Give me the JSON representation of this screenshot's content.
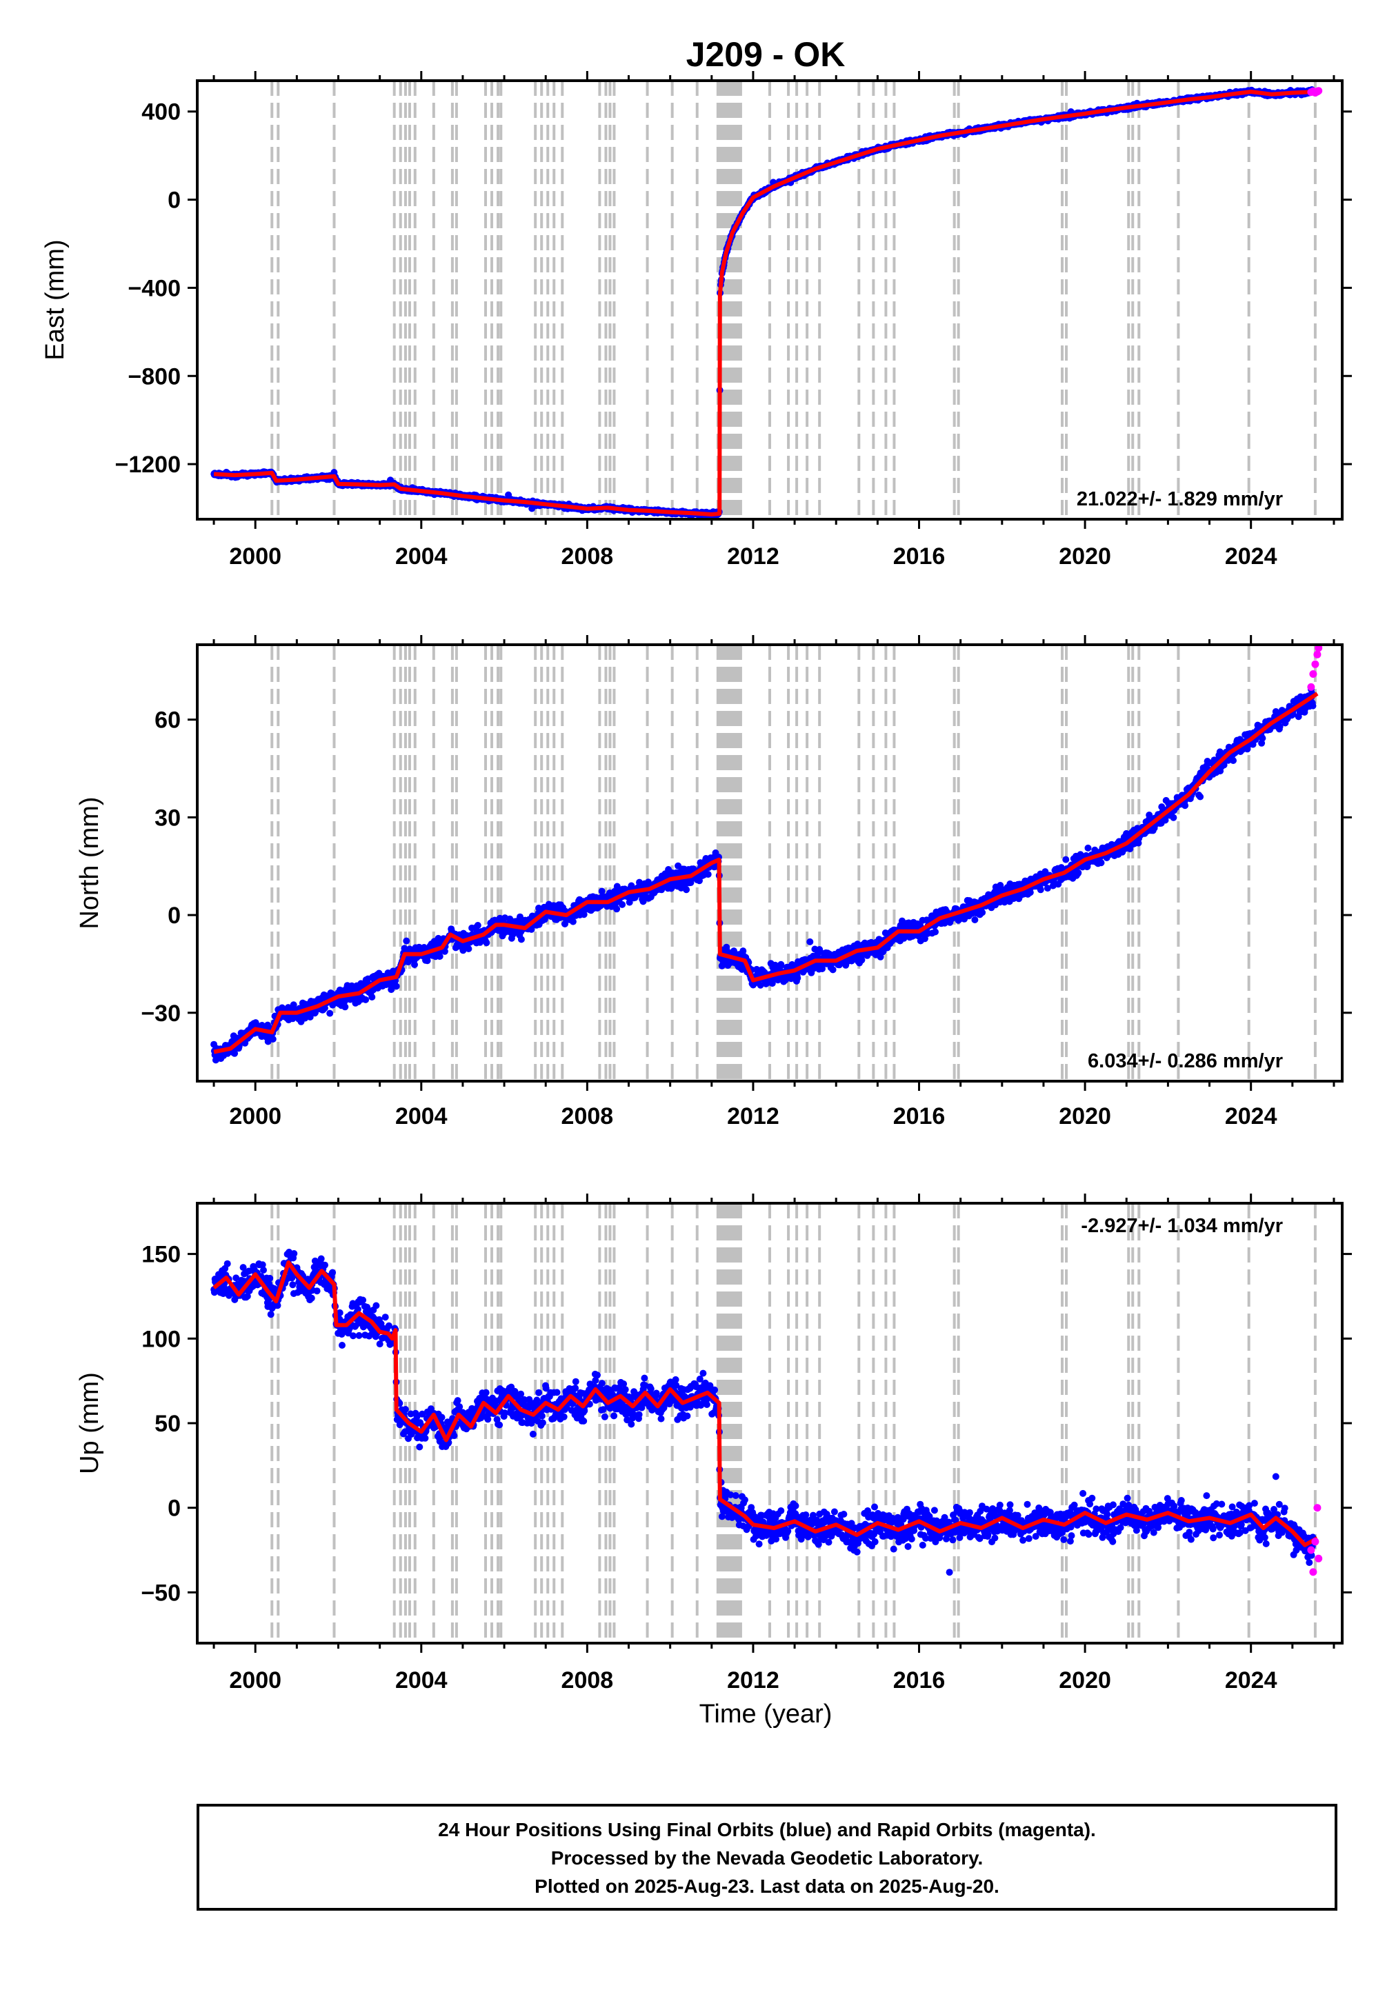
{
  "title": "J209 - OK",
  "xlabel": "Time (year)",
  "footer": {
    "line1": "24 Hour Positions Using Final Orbits (blue) and Rapid Orbits (magenta).",
    "line2": "Processed by the Nevada Geodetic Laboratory.",
    "line3": "Plotted on 2025-Aug-23. Last data on 2025-Aug-20."
  },
  "colors": {
    "final_orbits": "#0000ff",
    "rapid_orbits": "#ff00ff",
    "model": "#ff0000",
    "event_lines": "#c0c0c0",
    "frame": "#000000"
  },
  "event_lines_years": [
    2000.4,
    2000.55,
    2001.9,
    2003.35,
    2003.5,
    2003.62,
    2003.72,
    2003.85,
    2004.3,
    2004.75,
    2004.85,
    2005.55,
    2005.7,
    2005.85,
    2005.92,
    2006.75,
    2006.9,
    2007.05,
    2007.2,
    2007.4,
    2008.3,
    2008.45,
    2008.55,
    2008.65,
    2009.45,
    2010.05,
    2010.65,
    2011.15,
    2011.2,
    2011.25,
    2011.3,
    2011.35,
    2011.4,
    2011.45,
    2011.5,
    2011.55,
    2011.6,
    2011.65,
    2011.7,
    2012.4,
    2012.85,
    2013.05,
    2013.3,
    2013.6,
    2014.55,
    2014.9,
    2015.2,
    2015.4,
    2016.85,
    2016.95,
    2019.45,
    2019.55,
    2021.05,
    2021.15,
    2021.3,
    2022.25,
    2023.95,
    2025.55
  ],
  "chart_data": [
    {
      "type": "scatter",
      "name": "east",
      "ylabel": "East (mm)",
      "rate_text": "21.022+/- 1.829 mm/yr",
      "xlim": [
        1998.6,
        2026.2
      ],
      "ylim": [
        -1450,
        540
      ],
      "xticks": [
        2000,
        2004,
        2008,
        2012,
        2016,
        2020,
        2024
      ],
      "yticks": [
        400,
        0,
        -400,
        -800,
        -1200
      ],
      "ytick_labels": [
        "400",
        "0",
        "−400",
        "−800",
        "−1200"
      ],
      "series": [
        {
          "role": "model",
          "x": [
            1999.0,
            1999.5,
            2000.0,
            2000.4,
            2000.5,
            2001.0,
            2001.5,
            2001.9,
            2002.0,
            2002.5,
            2003.0,
            2003.35,
            2003.5,
            2004.0,
            2004.5,
            2005.0,
            2005.5,
            2006.0,
            2006.5,
            2007.0,
            2007.5,
            2008.0,
            2008.5,
            2009.0,
            2009.5,
            2010.0,
            2010.5,
            2011.0,
            2011.19,
            2011.2,
            2011.25,
            2011.35,
            2011.5,
            2011.75,
            2012.0,
            2012.5,
            2013.0,
            2013.5,
            2014.0,
            2014.5,
            2015.0,
            2015.5,
            2016.0,
            2016.5,
            2017.0,
            2017.5,
            2018.0,
            2018.5,
            2019.0,
            2019.5,
            2020.0,
            2020.5,
            2021.0,
            2021.5,
            2022.0,
            2022.5,
            2023.0,
            2023.5,
            2024.0,
            2024.5,
            2025.0,
            2025.6
          ],
          "y": [
            -1245,
            -1250,
            -1245,
            -1240,
            -1275,
            -1270,
            -1262,
            -1255,
            -1290,
            -1292,
            -1295,
            -1292,
            -1312,
            -1322,
            -1332,
            -1345,
            -1355,
            -1365,
            -1372,
            -1382,
            -1392,
            -1402,
            -1398,
            -1408,
            -1412,
            -1418,
            -1422,
            -1428,
            -1425,
            -430,
            -330,
            -240,
            -150,
            -60,
            10,
            60,
            100,
            140,
            170,
            200,
            230,
            250,
            270,
            290,
            305,
            320,
            335,
            350,
            365,
            378,
            390,
            405,
            418,
            430,
            442,
            455,
            465,
            478,
            490,
            478,
            485,
            490
          ]
        },
        {
          "role": "rapid",
          "x": [
            2025.45,
            2025.5,
            2025.55,
            2025.6,
            2025.63
          ],
          "y": [
            488,
            492,
            485,
            490,
            494
          ]
        }
      ]
    },
    {
      "type": "scatter",
      "name": "north",
      "ylabel": "North (mm)",
      "rate_text": "6.034+/- 0.286 mm/yr",
      "xlim": [
        1998.6,
        2026.2
      ],
      "ylim": [
        -51,
        83
      ],
      "xticks": [
        2000,
        2004,
        2008,
        2012,
        2016,
        2020,
        2024
      ],
      "yticks": [
        60,
        30,
        0,
        -30
      ],
      "ytick_labels": [
        "60",
        "30",
        "0",
        "−30"
      ],
      "series": [
        {
          "role": "model",
          "x": [
            1999.0,
            1999.4,
            2000.0,
            2000.4,
            2000.6,
            2001.0,
            2001.5,
            2002.0,
            2002.5,
            2003.0,
            2003.4,
            2003.6,
            2004.0,
            2004.5,
            2004.7,
            2005.0,
            2005.5,
            2005.8,
            2006.0,
            2006.5,
            2007.0,
            2007.5,
            2008.0,
            2008.5,
            2009.0,
            2009.5,
            2010.0,
            2010.5,
            2011.0,
            2011.18,
            2011.2,
            2011.5,
            2011.8,
            2012.0,
            2012.3,
            2012.6,
            2013.0,
            2013.5,
            2014.0,
            2014.5,
            2015.0,
            2015.5,
            2016.0,
            2016.5,
            2017.0,
            2017.5,
            2018.0,
            2018.5,
            2019.0,
            2019.5,
            2020.0,
            2020.5,
            2021.0,
            2021.5,
            2022.0,
            2022.5,
            2023.0,
            2023.5,
            2024.0,
            2024.5,
            2025.0,
            2025.6
          ],
          "y": [
            -42,
            -41,
            -35,
            -36,
            -30,
            -30,
            -28,
            -25,
            -24,
            -20,
            -19,
            -12,
            -12,
            -10,
            -6,
            -8,
            -6,
            -3,
            -3,
            -4,
            1,
            0,
            4,
            4,
            7,
            8,
            11,
            12,
            16,
            17,
            -12,
            -13,
            -14,
            -20,
            -19,
            -18,
            -17,
            -14,
            -14,
            -11,
            -10,
            -5,
            -5,
            -1,
            1,
            3,
            6,
            8,
            11,
            13,
            17,
            19,
            22,
            27,
            32,
            37,
            44,
            50,
            54,
            59,
            63,
            68
          ]
        },
        {
          "role": "rapid",
          "x": [
            2025.45,
            2025.5,
            2025.55,
            2025.6,
            2025.63
          ],
          "y": [
            70,
            74,
            77,
            80,
            82
          ]
        }
      ]
    },
    {
      "type": "scatter",
      "name": "up",
      "ylabel": "Up (mm)",
      "xlabel": "Time (year)",
      "rate_text": "-2.927+/- 1.034 mm/yr",
      "xlim": [
        1998.6,
        2026.2
      ],
      "ylim": [
        -80,
        180
      ],
      "xticks": [
        2000,
        2004,
        2008,
        2012,
        2016,
        2020,
        2024
      ],
      "yticks": [
        150,
        100,
        50,
        0,
        -50
      ],
      "ytick_labels": [
        "150",
        "100",
        "50",
        "0",
        "−50"
      ],
      "series": [
        {
          "role": "model",
          "x": [
            1999.0,
            1999.3,
            1999.6,
            2000.0,
            2000.3,
            2000.5,
            2000.8,
            2001.0,
            2001.3,
            2001.6,
            2001.9,
            2001.95,
            2002.2,
            2002.5,
            2002.8,
            2003.0,
            2003.2,
            2003.3,
            2003.38,
            2003.4,
            2003.7,
            2004.0,
            2004.3,
            2004.6,
            2004.9,
            2005.2,
            2005.5,
            2005.8,
            2006.1,
            2006.4,
            2006.7,
            2007.0,
            2007.3,
            2007.6,
            2007.9,
            2008.2,
            2008.5,
            2008.8,
            2009.1,
            2009.4,
            2009.7,
            2010.0,
            2010.3,
            2010.6,
            2010.9,
            2011.18,
            2011.2,
            2011.5,
            2011.8,
            2012.0,
            2012.5,
            2013.0,
            2013.5,
            2014.0,
            2014.5,
            2015.0,
            2015.5,
            2016.0,
            2016.5,
            2017.0,
            2017.5,
            2018.0,
            2018.5,
            2019.0,
            2019.5,
            2020.0,
            2020.5,
            2021.0,
            2021.5,
            2022.0,
            2022.5,
            2023.0,
            2023.5,
            2024.0,
            2024.3,
            2024.6,
            2025.0,
            2025.3,
            2025.6
          ],
          "y": [
            130,
            136,
            126,
            138,
            128,
            122,
            145,
            138,
            130,
            140,
            132,
            108,
            108,
            115,
            110,
            104,
            103,
            100,
            105,
            58,
            50,
            45,
            55,
            40,
            55,
            48,
            62,
            56,
            66,
            58,
            55,
            62,
            58,
            66,
            60,
            70,
            62,
            66,
            60,
            68,
            60,
            70,
            62,
            65,
            68,
            62,
            5,
            0,
            -5,
            -10,
            -12,
            -8,
            -14,
            -10,
            -16,
            -9,
            -13,
            -8,
            -14,
            -9,
            -12,
            -6,
            -12,
            -7,
            -10,
            -3,
            -9,
            -4,
            -7,
            -3,
            -8,
            -6,
            -9,
            -4,
            -12,
            -6,
            -14,
            -22,
            -18
          ]
        },
        {
          "role": "rapid",
          "x": [
            2025.45,
            2025.5,
            2025.55,
            2025.6,
            2025.63
          ],
          "y": [
            -25,
            -38,
            -20,
            0,
            -30
          ]
        }
      ]
    }
  ]
}
